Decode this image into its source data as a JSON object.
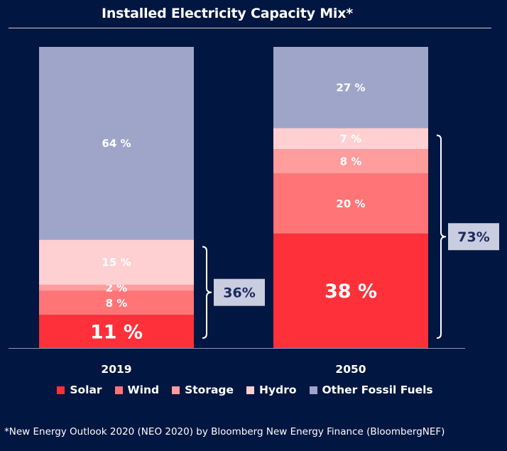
{
  "title": "Installed Electricity Capacity Mix*",
  "footnote": "*New Energy Outlook 2020 (NEO 2020) by Bloomberg New Energy Finance (BloombergNEF)",
  "colors": {
    "background": "#011640",
    "Solar": "#fe3039",
    "Wind": "#ff7577",
    "Storage": "#ff9c9c",
    "Hydro": "#ffd0d1",
    "Other Fossil Fuels": "#9ea5c9",
    "bracket_box": "#c9cde0",
    "bracket_text": "#1b2a5b"
  },
  "chart_data": {
    "type": "bar",
    "stacked": true,
    "categories": [
      "2019",
      "2050"
    ],
    "series": [
      {
        "name": "Solar",
        "values": [
          11,
          38
        ],
        "labels": [
          "11 %",
          "38 %"
        ]
      },
      {
        "name": "Wind",
        "values": [
          8,
          20
        ],
        "labels": [
          "8 %",
          "20 %"
        ]
      },
      {
        "name": "Storage",
        "values": [
          2,
          8
        ],
        "labels": [
          "2 %",
          "8 %"
        ]
      },
      {
        "name": "Hydro",
        "values": [
          15,
          7
        ],
        "labels": [
          "15 %",
          "7 %"
        ]
      },
      {
        "name": "Other Fossil Fuels",
        "values": [
          64,
          27
        ],
        "labels": [
          "64 %",
          "27 %"
        ]
      }
    ],
    "ylim": [
      0,
      100
    ],
    "grid": false,
    "legend_position": "bottom",
    "annotations": [
      {
        "category": "2019",
        "text": "36%"
      },
      {
        "category": "2050",
        "text": "73%"
      }
    ]
  }
}
